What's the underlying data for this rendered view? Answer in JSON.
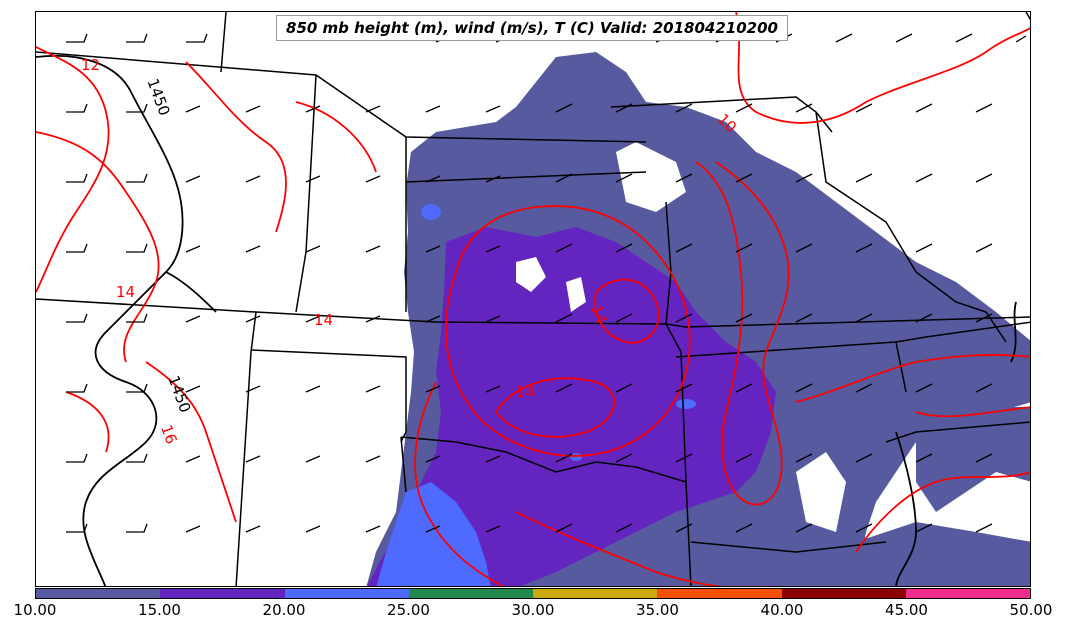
{
  "title": "850 mb height (m), wind (m/s), T (C) Valid: 201804210200",
  "colorbar": {
    "ticks": [
      "10.00",
      "15.00",
      "20.00",
      "25.00",
      "30.00",
      "35.00",
      "40.00",
      "45.00",
      "50.00"
    ],
    "colors": [
      "#575a9e",
      "#6324c0",
      "#4f6aff",
      "#1f8a4c",
      "#c9a90c",
      "#f4500a",
      "#8b0000",
      "#ef2d8c"
    ]
  },
  "contour_labels": {
    "temp": [
      "12",
      "14",
      "14",
      "14",
      "10",
      "16",
      "14"
    ],
    "height": [
      "1450",
      "1450"
    ]
  },
  "colors": {
    "temperature_contour": "#ff0000",
    "height_contour": "#000000",
    "state_lines": "#000000"
  }
}
